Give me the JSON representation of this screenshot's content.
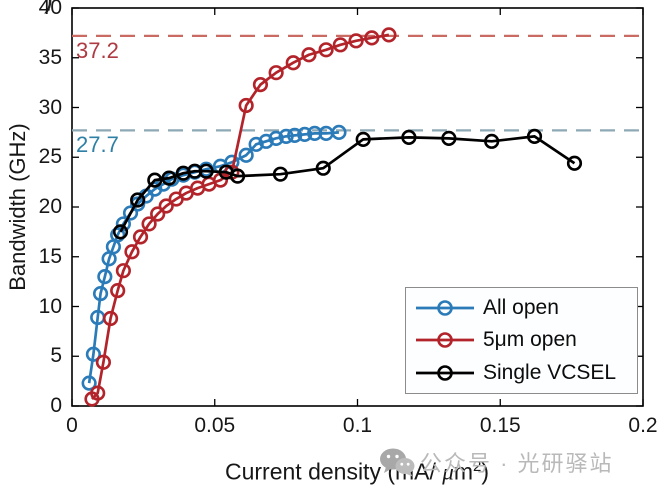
{
  "figure": {
    "corner_fragment": ")",
    "watermark": {
      "icon": "wechat-icon",
      "text": "公众号 · 光研驿站"
    }
  },
  "chart_data": {
    "type": "line",
    "title": "",
    "xlabel": "Current density (mA/ μm²)",
    "xlabel_parts": {
      "pre": "Current density (mA/ ",
      "mu": "μ",
      "unit": "m",
      "exp": "2",
      "post": ")"
    },
    "ylabel": "Bandwidth (GHz)",
    "xlim": [
      0,
      0.2
    ],
    "ylim": [
      0,
      40
    ],
    "grid": false,
    "box": true,
    "x_ticks": {
      "values": [
        0,
        0.05,
        0.1,
        0.15,
        0.2
      ],
      "labels": [
        "0",
        "0.05",
        "0.1",
        "0.15",
        "0.2"
      ]
    },
    "y_ticks": {
      "values": [
        0,
        5,
        10,
        15,
        20,
        25,
        30,
        35,
        40
      ],
      "labels": [
        "0",
        "5",
        "10",
        "15",
        "20",
        "25",
        "30",
        "35",
        "40"
      ]
    },
    "legend": {
      "position": "inside-bottom-right"
    },
    "ref_lines": [
      {
        "value": 37.2,
        "label": "37.2",
        "line_color": "#c96b62",
        "label_color": "#ae3a42"
      },
      {
        "value": 27.7,
        "label": "27.7",
        "line_color": "#8ea9b6",
        "label_color": "#2f80a5"
      }
    ],
    "series": [
      {
        "name": "All open",
        "color": "#2b7bb9",
        "marker": "circle",
        "points": [
          [
            0.006,
            2.3
          ],
          [
            0.0075,
            5.2
          ],
          [
            0.009,
            8.9
          ],
          [
            0.01,
            11.3
          ],
          [
            0.0115,
            13.0
          ],
          [
            0.013,
            14.8
          ],
          [
            0.0145,
            16.0
          ],
          [
            0.016,
            17.2
          ],
          [
            0.018,
            18.3
          ],
          [
            0.0205,
            19.4
          ],
          [
            0.023,
            20.3
          ],
          [
            0.026,
            21.1
          ],
          [
            0.029,
            21.8
          ],
          [
            0.032,
            22.3
          ],
          [
            0.035,
            22.8
          ],
          [
            0.039,
            23.2
          ],
          [
            0.043,
            23.5
          ],
          [
            0.047,
            23.8
          ],
          [
            0.052,
            24.1
          ],
          [
            0.056,
            24.5
          ],
          [
            0.061,
            25.2
          ],
          [
            0.0645,
            26.3
          ],
          [
            0.068,
            26.6
          ],
          [
            0.0715,
            26.9
          ],
          [
            0.075,
            27.1
          ],
          [
            0.078,
            27.2
          ],
          [
            0.0815,
            27.3
          ],
          [
            0.085,
            27.4
          ],
          [
            0.089,
            27.4
          ],
          [
            0.0935,
            27.5
          ]
        ]
      },
      {
        "name": "5μm open",
        "color": "#b2232a",
        "marker": "circle",
        "points": [
          [
            0.007,
            0.7
          ],
          [
            0.009,
            1.3
          ],
          [
            0.011,
            4.4
          ],
          [
            0.0135,
            8.8
          ],
          [
            0.016,
            11.6
          ],
          [
            0.018,
            13.6
          ],
          [
            0.021,
            15.5
          ],
          [
            0.024,
            17.0
          ],
          [
            0.027,
            18.3
          ],
          [
            0.03,
            19.3
          ],
          [
            0.033,
            20.1
          ],
          [
            0.0365,
            20.8
          ],
          [
            0.04,
            21.4
          ],
          [
            0.044,
            21.9
          ],
          [
            0.048,
            22.3
          ],
          [
            0.052,
            22.7
          ],
          [
            0.056,
            23.5
          ],
          [
            0.061,
            30.2
          ],
          [
            0.066,
            32.3
          ],
          [
            0.0715,
            33.5
          ],
          [
            0.0775,
            34.5
          ],
          [
            0.083,
            35.3
          ],
          [
            0.089,
            35.8
          ],
          [
            0.094,
            36.3
          ],
          [
            0.0995,
            36.7
          ],
          [
            0.105,
            37.0
          ],
          [
            0.111,
            37.3
          ]
        ]
      },
      {
        "name": "Single VCSEL",
        "color": "#000000",
        "marker": "circle",
        "points": [
          [
            0.017,
            17.5
          ],
          [
            0.023,
            20.7
          ],
          [
            0.029,
            22.7
          ],
          [
            0.034,
            22.9
          ],
          [
            0.039,
            23.4
          ],
          [
            0.043,
            23.6
          ],
          [
            0.047,
            23.6
          ],
          [
            0.054,
            23.5
          ],
          [
            0.058,
            23.1
          ],
          [
            0.073,
            23.3
          ],
          [
            0.088,
            23.9
          ],
          [
            0.102,
            26.8
          ],
          [
            0.118,
            27.0
          ],
          [
            0.132,
            26.9
          ],
          [
            0.147,
            26.6
          ],
          [
            0.162,
            27.1
          ],
          [
            0.176,
            24.4
          ]
        ]
      }
    ]
  }
}
